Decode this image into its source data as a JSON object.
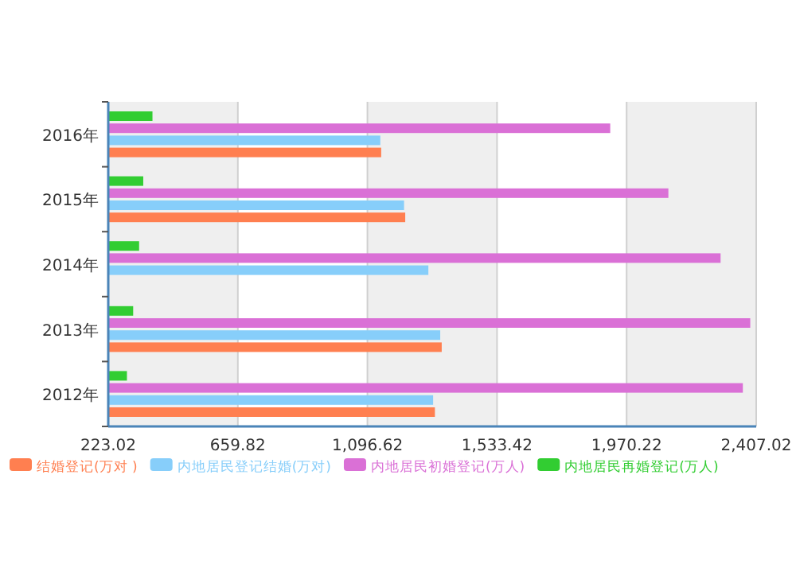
{
  "chart_data": {
    "type": "bar",
    "orientation": "horizontal",
    "categories": [
      "2016年",
      "2015年",
      "2014年",
      "2013年",
      "2012年"
    ],
    "series": [
      {
        "name": "结婚登记(万对 )",
        "color": "#ff7f50",
        "values": [
          1143,
          1224,
          null,
          1347,
          1324
        ]
      },
      {
        "name": "内地居民登记结婚(万对)",
        "color": "#87cefa",
        "values": [
          1140,
          1220,
          1302,
          1342,
          1318
        ]
      },
      {
        "name": "内地居民初婚登记(万人)",
        "color": "#da70d6",
        "values": [
          1915,
          2111,
          2287,
          2387,
          2362
        ]
      },
      {
        "name": "内地居民再婚登记(万人)",
        "color": "#32cd32",
        "values": [
          372,
          341,
          327,
          307,
          286
        ]
      }
    ],
    "xlim": [
      223.02,
      2407.02
    ],
    "xticks": [
      {
        "value": 223.02,
        "label": "223.02"
      },
      {
        "value": 659.82,
        "label": "659.82"
      },
      {
        "value": 1096.62,
        "label": "1,096.62"
      },
      {
        "value": 1533.42,
        "label": "1,533.42"
      },
      {
        "value": 1970.22,
        "label": "1,970.22"
      },
      {
        "value": 2407.02,
        "label": "2,407.02"
      }
    ],
    "grid": "x",
    "legend": "bottom"
  }
}
